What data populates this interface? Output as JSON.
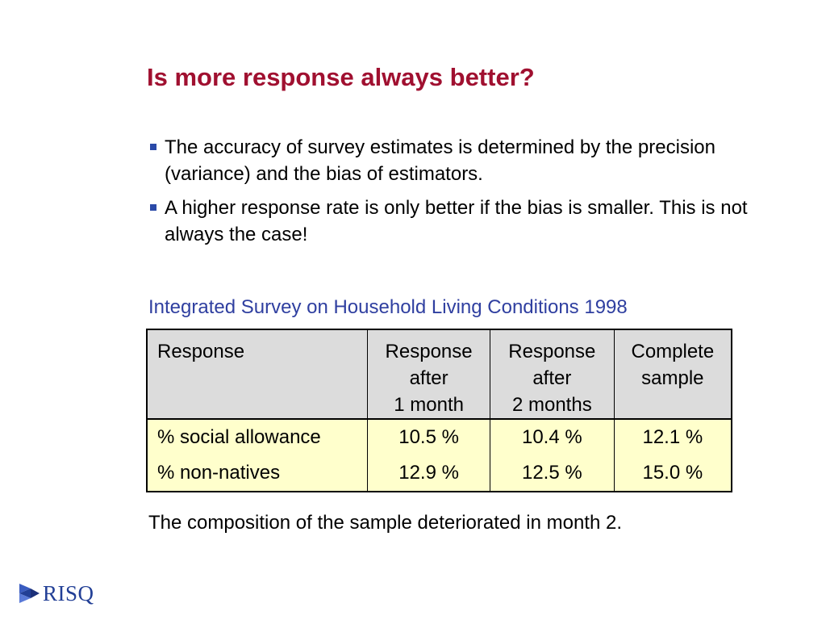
{
  "slide": {
    "title": "Is more response always better?",
    "bullets": [
      "The accuracy of survey estimates is determined by the precision (variance) and the bias of estimators.",
      "A higher response rate is only better if the bias is smaller. This is not always the case!"
    ],
    "table_caption": "Integrated Survey on Household Living Conditions 1998",
    "table": {
      "headers": [
        [
          "Response"
        ],
        [
          "Response",
          "after",
          "1 month"
        ],
        [
          "Response",
          "after",
          "2 months"
        ],
        [
          "Complete",
          "sample"
        ]
      ],
      "rows": [
        [
          "% social allowance",
          "10.5 %",
          "10.4 %",
          "12.1 %"
        ],
        [
          "% non-natives",
          "12.9 %",
          "12.5 %",
          "15.0 %"
        ]
      ]
    },
    "footnote": "The composition of the sample deteriorated in month 2.",
    "logo_text": "RISQ"
  },
  "colors": {
    "title": "#a01030",
    "caption": "#2f3fa0",
    "bullet_marker": "#2a4aa8",
    "table_header_bg": "#dcdcdc",
    "table_body_bg": "#ffffcc",
    "logo": "#223f96"
  },
  "icons": {
    "bullet": "square-bullet-icon",
    "logo": "risq-logo-icon"
  }
}
